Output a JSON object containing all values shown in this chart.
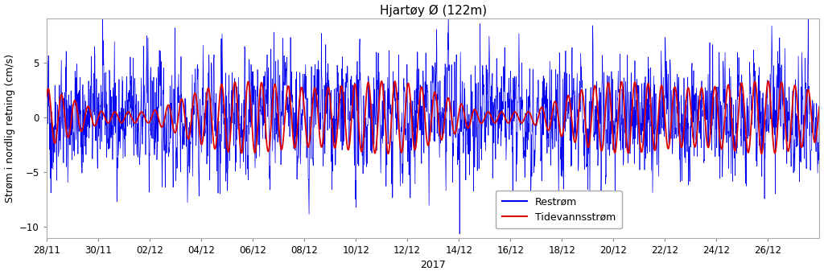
{
  "title": "Hjartøy Ø (122m)",
  "ylabel": "Strøm i nordlig retning (cm/s)",
  "xlabel": "2017",
  "ylim": [
    -11,
    9
  ],
  "yticks": [
    -10,
    -5,
    0,
    5
  ],
  "xtick_labels": [
    "28/11",
    "30/11",
    "02/12",
    "04/12",
    "06/12",
    "08/12",
    "10/12",
    "12/12",
    "14/12",
    "16/12",
    "18/12",
    "20/12",
    "22/12",
    "24/12",
    "26/12"
  ],
  "legend_labels": [
    "Restrøm",
    "Tidevannsstrøm"
  ],
  "blue_color": "#0000ee",
  "red_color": "#dd0000",
  "background_color": "#ffffff",
  "title_fontsize": 11,
  "label_fontsize": 9,
  "tick_fontsize": 8.5,
  "seed": 42,
  "n_points": 2880,
  "tidal_period_hours": 12.42,
  "spring_neap_period_days": 14.7
}
